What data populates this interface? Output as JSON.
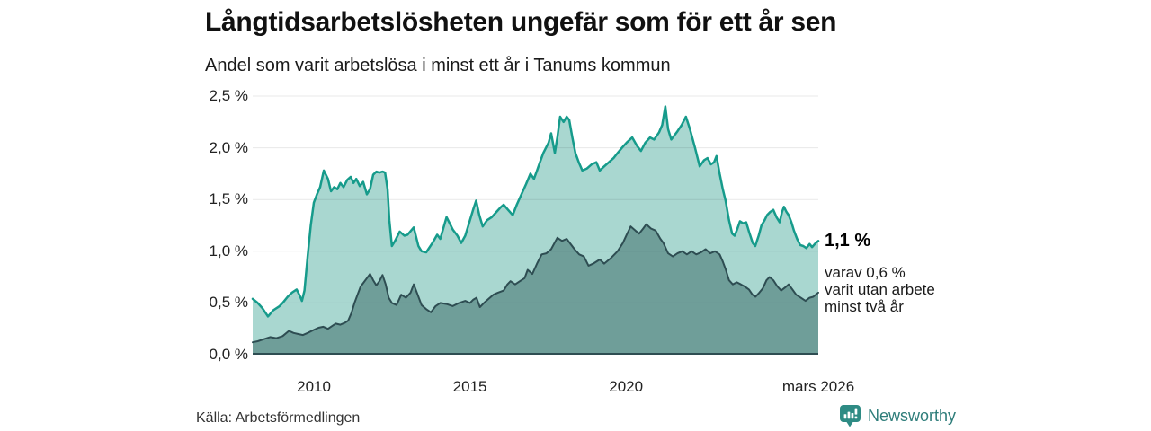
{
  "header": {
    "title": "Långtidsarbetslösheten ungefär som för ett år sen",
    "subtitle": "Andel som varit arbetslösa i minst ett år i Tanums kommun"
  },
  "footer": {
    "source": "Källa: Arbetsförmedlingen",
    "brand": "Newsworthy"
  },
  "colors": {
    "area_1yr_fill": "#a9d7d0",
    "area_1yr_line": "#169b8b",
    "area_2yr_fill": "#6f9e99",
    "area_2yr_line": "#2e4d52",
    "gridline": "rgba(0,0,0,0.09)",
    "baseline": "#2e4d52",
    "brand_teal": "#2e8b84"
  },
  "chart_data": {
    "type": "area",
    "title": "Långtidsarbetslösheten ungefär som för ett år sen",
    "subtitle": "Andel som varit arbetslösa i minst ett år i Tanums kommun",
    "unit": "%",
    "x_range": [
      2008.04,
      2026.16
    ],
    "ylim": [
      0,
      2.5
    ],
    "grid": true,
    "yticks": [
      0,
      0.5,
      1.0,
      1.5,
      2.0,
      2.5
    ],
    "ytick_labels": [
      "0,0 %",
      "0,5 %",
      "1,0 %",
      "1,5 %",
      "2,0 %",
      "2,5 %"
    ],
    "xticks": [
      {
        "x": 2010,
        "label": "2010"
      },
      {
        "x": 2015,
        "label": "2015"
      },
      {
        "x": 2020,
        "label": "2020"
      },
      {
        "x": 2026.16,
        "label": "mars 2026"
      }
    ],
    "annotations": {
      "latest_value": "1,1 %",
      "note": "varav 0,6 %\nvarit utan arbete\nminst två år"
    },
    "series": [
      {
        "name": "minst ett år",
        "points": [
          [
            2008.04,
            0.54
          ],
          [
            2008.2,
            0.5
          ],
          [
            2008.35,
            0.45
          ],
          [
            2008.53,
            0.37
          ],
          [
            2008.7,
            0.43
          ],
          [
            2008.9,
            0.47
          ],
          [
            2009.0,
            0.5
          ],
          [
            2009.16,
            0.56
          ],
          [
            2009.3,
            0.6
          ],
          [
            2009.45,
            0.63
          ],
          [
            2009.55,
            0.57
          ],
          [
            2009.62,
            0.52
          ],
          [
            2009.7,
            0.62
          ],
          [
            2009.8,
            0.95
          ],
          [
            2009.9,
            1.25
          ],
          [
            2010.0,
            1.47
          ],
          [
            2010.1,
            1.55
          ],
          [
            2010.2,
            1.62
          ],
          [
            2010.32,
            1.78
          ],
          [
            2010.45,
            1.7
          ],
          [
            2010.55,
            1.58
          ],
          [
            2010.65,
            1.62
          ],
          [
            2010.75,
            1.6
          ],
          [
            2010.85,
            1.66
          ],
          [
            2010.95,
            1.62
          ],
          [
            2011.07,
            1.69
          ],
          [
            2011.18,
            1.72
          ],
          [
            2011.27,
            1.66
          ],
          [
            2011.36,
            1.7
          ],
          [
            2011.47,
            1.63
          ],
          [
            2011.58,
            1.67
          ],
          [
            2011.7,
            1.55
          ],
          [
            2011.8,
            1.6
          ],
          [
            2011.9,
            1.74
          ],
          [
            2012.0,
            1.77
          ],
          [
            2012.1,
            1.76
          ],
          [
            2012.2,
            1.77
          ],
          [
            2012.28,
            1.76
          ],
          [
            2012.36,
            1.6
          ],
          [
            2012.42,
            1.3
          ],
          [
            2012.5,
            1.05
          ],
          [
            2012.6,
            1.1
          ],
          [
            2012.75,
            1.19
          ],
          [
            2012.9,
            1.15
          ],
          [
            2013.0,
            1.16
          ],
          [
            2013.2,
            1.23
          ],
          [
            2013.35,
            1.05
          ],
          [
            2013.45,
            1.0
          ],
          [
            2013.6,
            0.99
          ],
          [
            2013.8,
            1.08
          ],
          [
            2013.95,
            1.16
          ],
          [
            2014.05,
            1.12
          ],
          [
            2014.25,
            1.33
          ],
          [
            2014.45,
            1.21
          ],
          [
            2014.6,
            1.15
          ],
          [
            2014.72,
            1.08
          ],
          [
            2014.85,
            1.15
          ],
          [
            2014.95,
            1.25
          ],
          [
            2015.1,
            1.4
          ],
          [
            2015.2,
            1.49
          ],
          [
            2015.3,
            1.35
          ],
          [
            2015.41,
            1.24
          ],
          [
            2015.55,
            1.3
          ],
          [
            2015.7,
            1.33
          ],
          [
            2015.85,
            1.38
          ],
          [
            2016.0,
            1.43
          ],
          [
            2016.08,
            1.45
          ],
          [
            2016.22,
            1.4
          ],
          [
            2016.37,
            1.35
          ],
          [
            2016.5,
            1.45
          ],
          [
            2016.65,
            1.55
          ],
          [
            2016.8,
            1.65
          ],
          [
            2016.94,
            1.75
          ],
          [
            2017.05,
            1.7
          ],
          [
            2017.15,
            1.78
          ],
          [
            2017.23,
            1.85
          ],
          [
            2017.35,
            1.95
          ],
          [
            2017.52,
            2.05
          ],
          [
            2017.6,
            2.14
          ],
          [
            2017.72,
            1.95
          ],
          [
            2017.8,
            2.1
          ],
          [
            2017.89,
            2.3
          ],
          [
            2018.0,
            2.25
          ],
          [
            2018.1,
            2.3
          ],
          [
            2018.18,
            2.27
          ],
          [
            2018.28,
            2.1
          ],
          [
            2018.38,
            1.95
          ],
          [
            2018.5,
            1.85
          ],
          [
            2018.6,
            1.78
          ],
          [
            2018.75,
            1.8
          ],
          [
            2018.9,
            1.84
          ],
          [
            2019.05,
            1.86
          ],
          [
            2019.16,
            1.78
          ],
          [
            2019.3,
            1.82
          ],
          [
            2019.45,
            1.86
          ],
          [
            2019.6,
            1.9
          ],
          [
            2019.73,
            1.95
          ],
          [
            2019.87,
            2.0
          ],
          [
            2020.02,
            2.05
          ],
          [
            2020.2,
            2.1
          ],
          [
            2020.35,
            2.02
          ],
          [
            2020.48,
            1.97
          ],
          [
            2020.62,
            2.05
          ],
          [
            2020.77,
            2.1
          ],
          [
            2020.9,
            2.08
          ],
          [
            2021.06,
            2.15
          ],
          [
            2021.16,
            2.22
          ],
          [
            2021.26,
            2.4
          ],
          [
            2021.35,
            2.18
          ],
          [
            2021.45,
            2.08
          ],
          [
            2021.55,
            2.12
          ],
          [
            2021.65,
            2.16
          ],
          [
            2021.78,
            2.22
          ],
          [
            2021.92,
            2.3
          ],
          [
            2022.05,
            2.18
          ],
          [
            2022.21,
            2.0
          ],
          [
            2022.36,
            1.82
          ],
          [
            2022.5,
            1.88
          ],
          [
            2022.61,
            1.9
          ],
          [
            2022.72,
            1.84
          ],
          [
            2022.82,
            1.86
          ],
          [
            2022.9,
            1.92
          ],
          [
            2023.0,
            1.75
          ],
          [
            2023.1,
            1.6
          ],
          [
            2023.19,
            1.49
          ],
          [
            2023.3,
            1.3
          ],
          [
            2023.4,
            1.17
          ],
          [
            2023.48,
            1.15
          ],
          [
            2023.57,
            1.22
          ],
          [
            2023.65,
            1.29
          ],
          [
            2023.75,
            1.27
          ],
          [
            2023.85,
            1.28
          ],
          [
            2023.95,
            1.18
          ],
          [
            2024.06,
            1.08
          ],
          [
            2024.14,
            1.05
          ],
          [
            2024.25,
            1.15
          ],
          [
            2024.34,
            1.25
          ],
          [
            2024.44,
            1.3
          ],
          [
            2024.52,
            1.35
          ],
          [
            2024.62,
            1.38
          ],
          [
            2024.72,
            1.4
          ],
          [
            2024.82,
            1.33
          ],
          [
            2024.92,
            1.28
          ],
          [
            2025.0,
            1.38
          ],
          [
            2025.06,
            1.43
          ],
          [
            2025.14,
            1.38
          ],
          [
            2025.21,
            1.35
          ],
          [
            2025.3,
            1.28
          ],
          [
            2025.38,
            1.2
          ],
          [
            2025.48,
            1.12
          ],
          [
            2025.58,
            1.06
          ],
          [
            2025.68,
            1.05
          ],
          [
            2025.78,
            1.03
          ],
          [
            2025.88,
            1.07
          ],
          [
            2025.96,
            1.04
          ],
          [
            2026.08,
            1.08
          ],
          [
            2026.16,
            1.1
          ]
        ]
      },
      {
        "name": "minst två år",
        "points": [
          [
            2008.04,
            0.12
          ],
          [
            2008.2,
            0.13
          ],
          [
            2008.4,
            0.15
          ],
          [
            2008.6,
            0.17
          ],
          [
            2008.8,
            0.16
          ],
          [
            2009.0,
            0.18
          ],
          [
            2009.2,
            0.23
          ],
          [
            2009.35,
            0.21
          ],
          [
            2009.5,
            0.2
          ],
          [
            2009.65,
            0.19
          ],
          [
            2009.8,
            0.21
          ],
          [
            2010.0,
            0.24
          ],
          [
            2010.15,
            0.26
          ],
          [
            2010.3,
            0.27
          ],
          [
            2010.45,
            0.25
          ],
          [
            2010.6,
            0.28
          ],
          [
            2010.7,
            0.3
          ],
          [
            2010.85,
            0.29
          ],
          [
            2011.0,
            0.31
          ],
          [
            2011.1,
            0.33
          ],
          [
            2011.2,
            0.4
          ],
          [
            2011.3,
            0.5
          ],
          [
            2011.4,
            0.58
          ],
          [
            2011.5,
            0.66
          ],
          [
            2011.6,
            0.7
          ],
          [
            2011.7,
            0.74
          ],
          [
            2011.8,
            0.78
          ],
          [
            2011.9,
            0.72
          ],
          [
            2012.0,
            0.67
          ],
          [
            2012.1,
            0.71
          ],
          [
            2012.2,
            0.77
          ],
          [
            2012.3,
            0.68
          ],
          [
            2012.4,
            0.55
          ],
          [
            2012.5,
            0.5
          ],
          [
            2012.65,
            0.48
          ],
          [
            2012.8,
            0.58
          ],
          [
            2012.95,
            0.55
          ],
          [
            2013.1,
            0.6
          ],
          [
            2013.2,
            0.68
          ],
          [
            2013.3,
            0.6
          ],
          [
            2013.45,
            0.48
          ],
          [
            2013.6,
            0.44
          ],
          [
            2013.75,
            0.41
          ],
          [
            2013.9,
            0.47
          ],
          [
            2014.05,
            0.5
          ],
          [
            2014.25,
            0.49
          ],
          [
            2014.45,
            0.47
          ],
          [
            2014.65,
            0.5
          ],
          [
            2014.85,
            0.52
          ],
          [
            2015.0,
            0.5
          ],
          [
            2015.1,
            0.53
          ],
          [
            2015.21,
            0.55
          ],
          [
            2015.32,
            0.46
          ],
          [
            2015.45,
            0.5
          ],
          [
            2015.6,
            0.54
          ],
          [
            2015.75,
            0.58
          ],
          [
            2015.9,
            0.6
          ],
          [
            2016.08,
            0.62
          ],
          [
            2016.2,
            0.68
          ],
          [
            2016.3,
            0.71
          ],
          [
            2016.45,
            0.68
          ],
          [
            2016.6,
            0.71
          ],
          [
            2016.75,
            0.74
          ],
          [
            2016.85,
            0.82
          ],
          [
            2017.0,
            0.78
          ],
          [
            2017.15,
            0.88
          ],
          [
            2017.3,
            0.97
          ],
          [
            2017.45,
            0.98
          ],
          [
            2017.6,
            1.02
          ],
          [
            2017.8,
            1.13
          ],
          [
            2017.95,
            1.1
          ],
          [
            2018.1,
            1.12
          ],
          [
            2018.2,
            1.08
          ],
          [
            2018.35,
            1.02
          ],
          [
            2018.5,
            0.97
          ],
          [
            2018.65,
            0.95
          ],
          [
            2018.8,
            0.86
          ],
          [
            2018.95,
            0.88
          ],
          [
            2019.16,
            0.92
          ],
          [
            2019.3,
            0.88
          ],
          [
            2019.5,
            0.93
          ],
          [
            2019.73,
            1.0
          ],
          [
            2019.9,
            1.08
          ],
          [
            2020.02,
            1.16
          ],
          [
            2020.15,
            1.24
          ],
          [
            2020.3,
            1.2
          ],
          [
            2020.42,
            1.17
          ],
          [
            2020.55,
            1.22
          ],
          [
            2020.65,
            1.26
          ],
          [
            2020.8,
            1.22
          ],
          [
            2020.95,
            1.2
          ],
          [
            2021.1,
            1.12
          ],
          [
            2021.2,
            1.08
          ],
          [
            2021.35,
            0.98
          ],
          [
            2021.5,
            0.95
          ],
          [
            2021.65,
            0.98
          ],
          [
            2021.8,
            1.0
          ],
          [
            2021.95,
            0.97
          ],
          [
            2022.1,
            1.0
          ],
          [
            2022.25,
            0.97
          ],
          [
            2022.4,
            0.99
          ],
          [
            2022.55,
            1.02
          ],
          [
            2022.7,
            0.98
          ],
          [
            2022.85,
            1.0
          ],
          [
            2023.0,
            0.97
          ],
          [
            2023.1,
            0.9
          ],
          [
            2023.2,
            0.82
          ],
          [
            2023.3,
            0.72
          ],
          [
            2023.42,
            0.68
          ],
          [
            2023.55,
            0.7
          ],
          [
            2023.68,
            0.68
          ],
          [
            2023.8,
            0.66
          ],
          [
            2023.94,
            0.63
          ],
          [
            2024.05,
            0.58
          ],
          [
            2024.15,
            0.56
          ],
          [
            2024.27,
            0.6
          ],
          [
            2024.38,
            0.64
          ],
          [
            2024.5,
            0.72
          ],
          [
            2024.6,
            0.75
          ],
          [
            2024.72,
            0.72
          ],
          [
            2024.85,
            0.66
          ],
          [
            2024.97,
            0.62
          ],
          [
            2025.1,
            0.65
          ],
          [
            2025.21,
            0.68
          ],
          [
            2025.33,
            0.63
          ],
          [
            2025.45,
            0.58
          ],
          [
            2025.6,
            0.55
          ],
          [
            2025.75,
            0.52
          ],
          [
            2025.88,
            0.55
          ],
          [
            2026.0,
            0.56
          ],
          [
            2026.16,
            0.6
          ]
        ]
      }
    ]
  }
}
